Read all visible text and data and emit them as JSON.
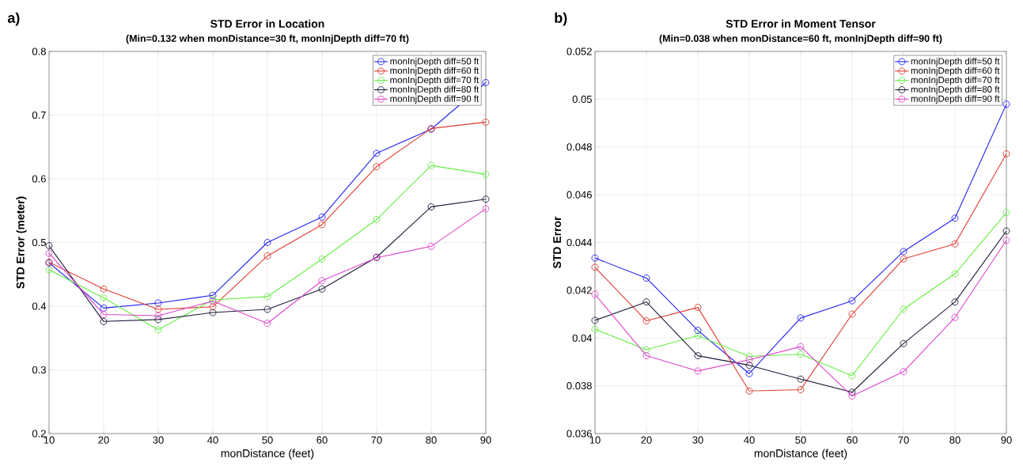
{
  "chart_data": [
    {
      "type": "line",
      "title": "STD Error in Location",
      "subtitle": "(Min=0.132 when monDistance=30 ft, monInjDepth diff=70 ft)",
      "xlabel": "monDistance (feet)",
      "ylabel": "STD Error (meter)",
      "annotations": [
        "a)"
      ],
      "x": [
        10,
        20,
        30,
        40,
        50,
        60,
        70,
        80,
        90
      ],
      "xlim": [
        10,
        90
      ],
      "xticks": [
        10,
        20,
        30,
        40,
        50,
        60,
        70,
        80,
        90
      ],
      "ylim": [
        0.2,
        0.8
      ],
      "yticks": [
        0.2,
        0.3,
        0.4,
        0.5,
        0.6,
        0.7,
        0.8
      ],
      "grid": true,
      "legend": "top right",
      "marker": "circle",
      "line_style": "solid",
      "series": [
        {
          "name": "monInjDepth diff=50 ft",
          "color": "#2222ee",
          "values": [
            0.468,
            0.397,
            0.405,
            0.417,
            0.5,
            0.54,
            0.64,
            0.678,
            0.751
          ]
        },
        {
          "name": "monInjDepth diff=60 ft",
          "color": "#e03a30",
          "values": [
            0.469,
            0.427,
            0.395,
            0.399,
            0.479,
            0.528,
            0.619,
            0.679,
            0.689
          ]
        },
        {
          "name": "monInjDepth diff=70 ft",
          "color": "#66ee44",
          "values": [
            0.457,
            0.413,
            0.363,
            0.41,
            0.415,
            0.474,
            0.536,
            0.621,
            0.607
          ]
        },
        {
          "name": "monInjDepth diff=80 ft",
          "color": "#1c1c38",
          "values": [
            0.495,
            0.376,
            0.379,
            0.39,
            0.395,
            0.427,
            0.477,
            0.556,
            0.568
          ]
        },
        {
          "name": "monInjDepth diff=90 ft",
          "color": "#dd44cc",
          "values": [
            0.483,
            0.387,
            0.385,
            0.408,
            0.373,
            0.44,
            0.476,
            0.494,
            0.553
          ]
        }
      ]
    },
    {
      "type": "line",
      "title": "STD Error in Moment Tensor",
      "subtitle": "(Min=0.038 when monDistance=60 ft, monInjDepth diff=90 ft)",
      "xlabel": "monDistance (feet)",
      "ylabel": "STD Error",
      "annotations": [
        "b)"
      ],
      "x": [
        10,
        20,
        30,
        40,
        50,
        60,
        70,
        80,
        90
      ],
      "xlim": [
        10,
        90
      ],
      "xticks": [
        10,
        20,
        30,
        40,
        50,
        60,
        70,
        80,
        90
      ],
      "ylim": [
        0.036,
        0.052
      ],
      "yticks": [
        0.036,
        0.038,
        0.04,
        0.042,
        0.044,
        0.046,
        0.048,
        0.05,
        0.052
      ],
      "grid": true,
      "legend": "top right",
      "marker": "circle",
      "line_style": "solid",
      "series": [
        {
          "name": "monInjDepth diff=50 ft",
          "color": "#2222ee",
          "values": [
            0.04335,
            0.04251,
            0.04032,
            0.03851,
            0.04084,
            0.04156,
            0.04362,
            0.04502,
            0.04979
          ]
        },
        {
          "name": "monInjDepth diff=60 ft",
          "color": "#e03a30",
          "values": [
            0.04296,
            0.04072,
            0.04128,
            0.03778,
            0.03784,
            0.041,
            0.04331,
            0.04394,
            0.04771
          ]
        },
        {
          "name": "monInjDepth diff=70 ft",
          "color": "#66ee44",
          "values": [
            0.04037,
            0.03951,
            0.0401,
            0.03923,
            0.03932,
            0.03842,
            0.04121,
            0.04269,
            0.04525
          ]
        },
        {
          "name": "monInjDepth diff=80 ft",
          "color": "#1c1c38",
          "values": [
            0.04074,
            0.04151,
            0.03926,
            0.03886,
            0.03828,
            0.03773,
            0.03977,
            0.04151,
            0.04448
          ]
        },
        {
          "name": "monInjDepth diff=90 ft",
          "color": "#dd44cc",
          "values": [
            0.04183,
            0.03926,
            0.03862,
            0.03909,
            0.03964,
            0.03757,
            0.03859,
            0.04086,
            0.04409
          ]
        }
      ]
    }
  ]
}
